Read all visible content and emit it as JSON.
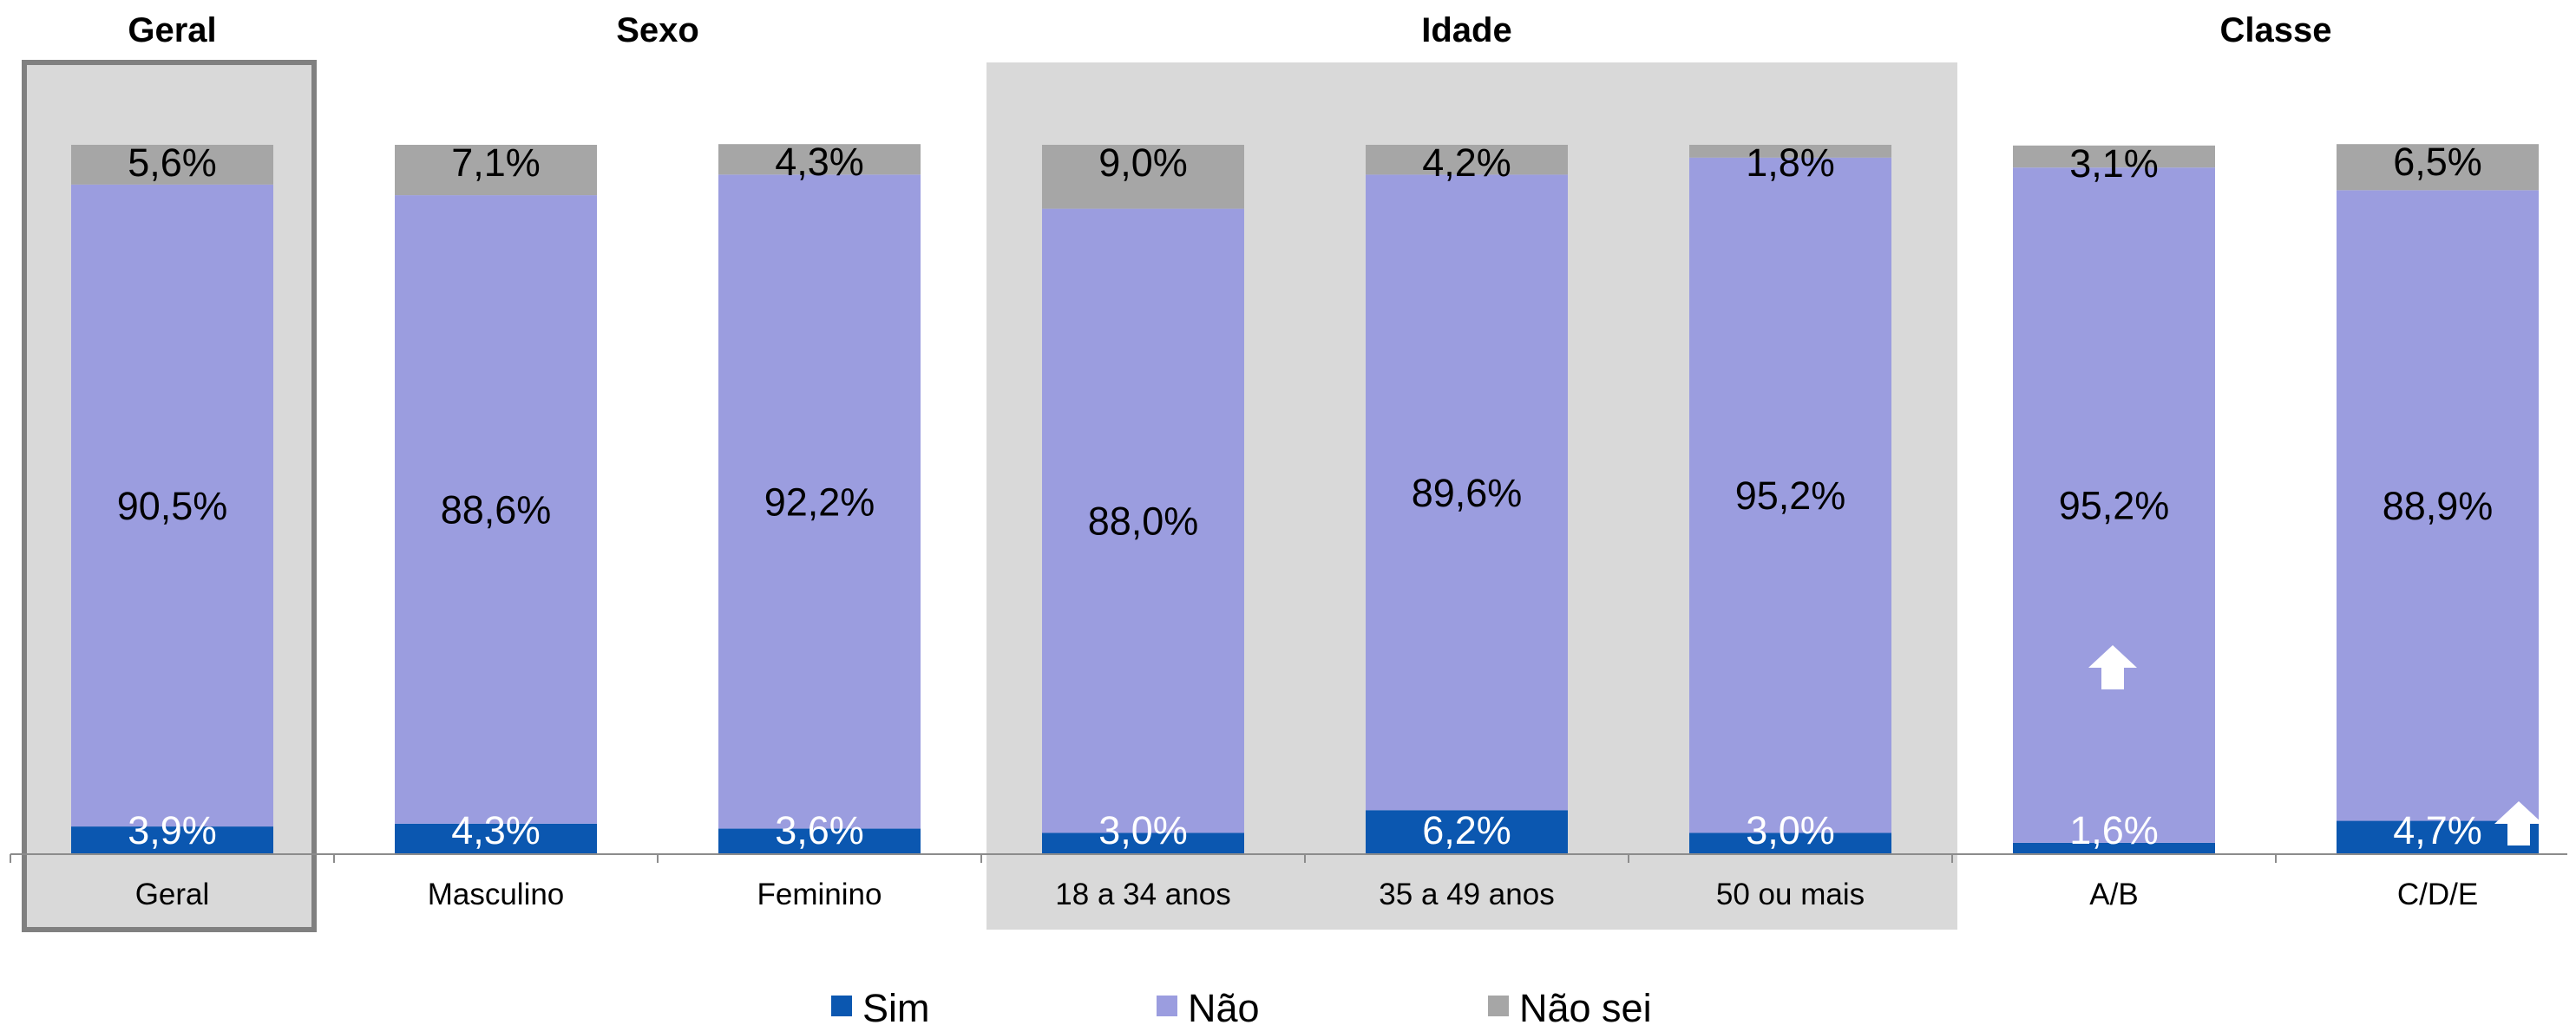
{
  "chart_data": {
    "type": "bar",
    "stacked": true,
    "normalized": true,
    "groups": [
      {
        "title": "Geral",
        "categories": [
          "Geral"
        ]
      },
      {
        "title": "Sexo",
        "categories": [
          "Masculino",
          "Feminino"
        ]
      },
      {
        "title": "Idade",
        "categories": [
          "18 a 34 anos",
          "35 a 49 anos",
          "50 ou mais"
        ]
      },
      {
        "title": "Classe",
        "categories": [
          "A/B",
          "C/D/E"
        ]
      }
    ],
    "categories": [
      "Geral",
      "Masculino",
      "Feminino",
      "18 a 34 anos",
      "35 a 49 anos",
      "50 ou mais",
      "A/B",
      "C/D/E"
    ],
    "series": [
      {
        "name": "Sim",
        "color": "#0b57b0",
        "label_color": "#ffffff",
        "values": [
          3.9,
          4.3,
          3.6,
          3.0,
          6.2,
          3.0,
          1.6,
          4.7
        ],
        "labels": [
          "3,9%",
          "4,3%",
          "3,6%",
          "3,0%",
          "6,2%",
          "3,0%",
          "1,6%",
          "4,7%"
        ]
      },
      {
        "name": "Não",
        "color": "#9b9ddf",
        "label_color": "#000000",
        "values": [
          90.5,
          88.6,
          92.2,
          88.0,
          89.6,
          95.2,
          95.2,
          88.9
        ],
        "labels": [
          "90,5%",
          "88,6%",
          "92,2%",
          "88,0%",
          "89,6%",
          "95,2%",
          "95,2%",
          "88,9%"
        ]
      },
      {
        "name": "Não sei",
        "color": "#a6a6a6",
        "label_color": "#000000",
        "values": [
          5.6,
          7.1,
          4.3,
          9.0,
          4.2,
          1.8,
          3.1,
          6.5
        ],
        "labels": [
          "5,6%",
          "7,1%",
          "4,3%",
          "9,0%",
          "4,2%",
          "1,8%",
          "3,1%",
          "6,5%"
        ]
      }
    ],
    "highlight": {
      "geral_box_color": "#808080",
      "shaded_panel_color": "#d9d9d9"
    },
    "significance_arrows": [
      {
        "category": "A/B",
        "series": "Não",
        "direction": "up",
        "icon": "up-arrow-icon"
      },
      {
        "category": "C/D/E",
        "series": "Sim",
        "direction": "up",
        "icon": "up-arrow-icon"
      }
    ],
    "legend": {
      "position": "bottom",
      "items": [
        "Sim",
        "Não",
        "Não sei"
      ]
    },
    "ylim": [
      0,
      100
    ],
    "grid": false
  }
}
